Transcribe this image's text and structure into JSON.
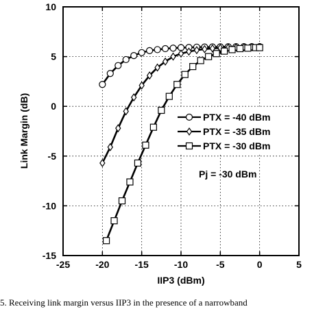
{
  "chart_data": {
    "type": "line",
    "title": "",
    "xlabel": "IIP3 (dBm)",
    "ylabel": "Link Margin (dB)",
    "xlim": [
      -25,
      5
    ],
    "ylim": [
      -15,
      10
    ],
    "x_ticks": [
      -25,
      -20,
      -15,
      -10,
      -5,
      0,
      5
    ],
    "y_ticks": [
      -15,
      -10,
      -5,
      0,
      5,
      10
    ],
    "x_tick_labels": [
      "-25",
      "-20",
      "-15",
      "-10",
      "-5",
      "0",
      "5"
    ],
    "y_tick_labels": [
      "-15",
      "-10",
      "-5",
      "0",
      "5",
      "10"
    ],
    "grid": true,
    "legend_position": "center-right",
    "annotation": "Pj = -30 dBm",
    "series": [
      {
        "name": "PTX = -40 dBm",
        "marker": "circle",
        "x": [
          -20,
          -19,
          -18,
          -17,
          -16,
          -15,
          -14,
          -13,
          -12,
          -11,
          -10,
          -9,
          -8,
          -7,
          -6,
          -5,
          -4,
          -3,
          -2,
          -1,
          0
        ],
        "y": [
          2.2,
          3.3,
          4.1,
          4.7,
          5.1,
          5.4,
          5.6,
          5.7,
          5.8,
          5.85,
          5.9,
          5.92,
          5.95,
          5.96,
          5.97,
          5.98,
          5.99,
          6.0,
          6.0,
          6.0,
          6.0
        ]
      },
      {
        "name": "PTX = -35 dBm",
        "marker": "diamond",
        "x": [
          -20,
          -19,
          -18,
          -17,
          -16,
          -15,
          -14,
          -13,
          -12,
          -11,
          -10,
          -9,
          -8,
          -7,
          -6,
          -5,
          -4,
          -3,
          -2,
          -1,
          0
        ],
        "y": [
          -5.7,
          -4.1,
          -2.2,
          -0.5,
          0.9,
          2.1,
          3.1,
          3.9,
          4.5,
          5.0,
          5.3,
          5.5,
          5.65,
          5.75,
          5.82,
          5.87,
          5.9,
          5.93,
          5.95,
          5.96,
          5.97
        ]
      },
      {
        "name": "PTX = -30 dBm",
        "marker": "square",
        "x": [
          -19.5,
          -18.5,
          -17.5,
          -16.5,
          -15.5,
          -14.5,
          -13.5,
          -12.5,
          -11.5,
          -10.5,
          -9.5,
          -8.5,
          -7.5,
          -6.5,
          -5.5,
          -4.5,
          -3.5,
          -2.5,
          -1.5,
          -0.5,
          0
        ],
        "y": [
          -13.5,
          -11.5,
          -9.5,
          -7.6,
          -5.7,
          -3.9,
          -2.1,
          -0.4,
          1.0,
          2.2,
          3.2,
          4.0,
          4.6,
          5.0,
          5.3,
          5.55,
          5.7,
          5.8,
          5.85,
          5.9,
          5.9
        ]
      }
    ]
  },
  "caption": "5. Receiving link margin versus IIP3 in the presence of a narrowband"
}
